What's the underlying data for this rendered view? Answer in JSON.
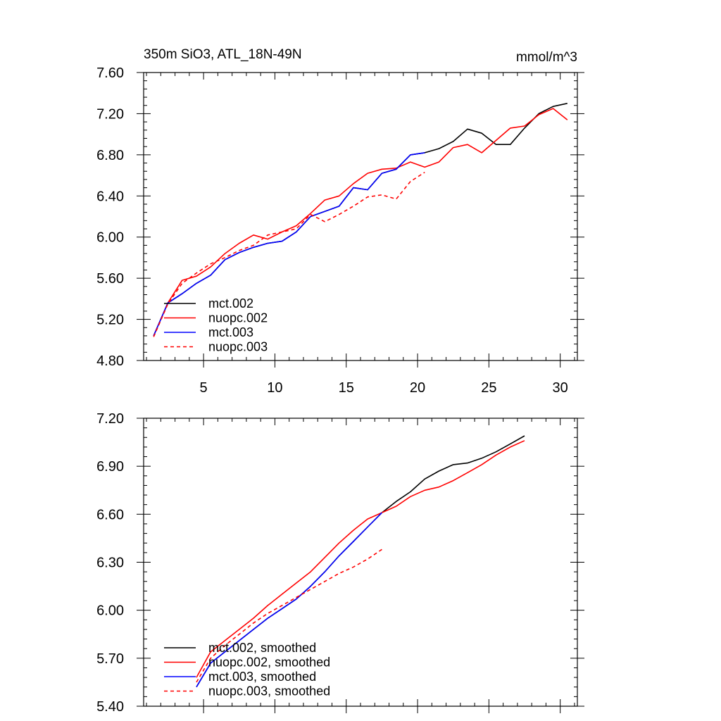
{
  "figure": {
    "title_left": "350m SiO3, ATL_18N-49N",
    "title_right": "mmol/m^3"
  },
  "colors": {
    "black": "#000000",
    "red": "#ff0000",
    "blue": "#0000ff",
    "background": "#ffffff"
  },
  "chart_data": [
    {
      "type": "line",
      "title": "350m SiO3, ATL_18N-49N",
      "units": "mmol/m^3",
      "xlabel": "",
      "ylabel": "",
      "xlim": [
        0.8,
        31.2
      ],
      "ylim": [
        4.8,
        7.6
      ],
      "x_ticks": [
        5,
        10,
        15,
        20,
        25,
        30
      ],
      "x_tick_labels": [
        "5",
        "10",
        "15",
        "20",
        "25",
        "30"
      ],
      "y_ticks": [
        4.8,
        5.2,
        5.6,
        6.0,
        6.4,
        6.8,
        7.2,
        7.6
      ],
      "y_tick_labels": [
        "4.80",
        "5.20",
        "5.60",
        "6.00",
        "6.40",
        "6.80",
        "7.20",
        "7.60"
      ],
      "legend_position": "bottom-left",
      "grid": false,
      "series": [
        {
          "name": "mct.002",
          "color": "#000000",
          "dash": "solid",
          "x": [
            1.5,
            2.5,
            3.5,
            4.5,
            5.5,
            6.5,
            7.5,
            8.5,
            9.5,
            10.5,
            11.5,
            12.5,
            13.5,
            14.5,
            15.5,
            16.5,
            17.5,
            18.5,
            19.5,
            20.5,
            21.5,
            22.5,
            23.5,
            24.5,
            25.5,
            26.5,
            27.5,
            28.5,
            29.5,
            30.5
          ],
          "values": [
            5.04,
            5.36,
            5.45,
            5.55,
            5.63,
            5.78,
            5.85,
            5.9,
            5.94,
            5.96,
            6.05,
            6.2,
            6.25,
            6.3,
            6.48,
            6.46,
            6.62,
            6.66,
            6.8,
            6.82,
            6.86,
            6.93,
            7.05,
            7.01,
            6.9,
            6.9,
            7.06,
            7.2,
            7.27,
            7.3
          ]
        },
        {
          "name": "nuopc.002",
          "color": "#ff0000",
          "dash": "solid",
          "x": [
            1.5,
            2.5,
            3.5,
            4.5,
            5.5,
            6.5,
            7.5,
            8.5,
            9.5,
            10.5,
            11.5,
            12.5,
            13.5,
            14.5,
            15.5,
            16.5,
            17.5,
            18.5,
            19.5,
            20.5,
            21.5,
            22.5,
            23.5,
            24.5,
            25.5,
            26.5,
            27.5,
            28.5,
            29.5,
            30.5
          ],
          "values": [
            5.04,
            5.36,
            5.58,
            5.62,
            5.71,
            5.84,
            5.94,
            6.02,
            5.98,
            6.05,
            6.11,
            6.23,
            6.36,
            6.4,
            6.52,
            6.62,
            6.66,
            6.67,
            6.73,
            6.68,
            6.73,
            6.87,
            6.9,
            6.82,
            6.94,
            7.06,
            7.08,
            7.19,
            7.25,
            7.14
          ]
        },
        {
          "name": "mct.003",
          "color": "#0000ff",
          "dash": "solid",
          "x": [
            1.5,
            2.5,
            3.5,
            4.5,
            5.5,
            6.5,
            7.5,
            8.5,
            9.5,
            10.5,
            11.5,
            12.5,
            13.5,
            14.5,
            15.5,
            16.5,
            17.5,
            18.5,
            19.5,
            20.5
          ],
          "values": [
            5.04,
            5.36,
            5.45,
            5.55,
            5.63,
            5.78,
            5.85,
            5.9,
            5.94,
            5.96,
            6.05,
            6.2,
            6.25,
            6.3,
            6.48,
            6.46,
            6.62,
            6.66,
            6.8,
            6.82
          ]
        },
        {
          "name": "nuopc.003",
          "color": "#ff0000",
          "dash": "dashed",
          "x": [
            1.5,
            2.5,
            3.5,
            4.5,
            5.5,
            6.5,
            7.5,
            8.5,
            9.5,
            10.5,
            11.5,
            12.5,
            13.5,
            14.5,
            15.5,
            16.5,
            17.5,
            18.5,
            19.5,
            20.5
          ],
          "values": [
            5.03,
            5.35,
            5.55,
            5.65,
            5.74,
            5.8,
            5.87,
            5.92,
            6.02,
            6.05,
            6.08,
            6.22,
            6.15,
            6.22,
            6.3,
            6.39,
            6.41,
            6.37,
            6.54,
            6.63
          ]
        }
      ]
    },
    {
      "type": "line",
      "title": "",
      "xlabel": "",
      "ylabel": "",
      "xlim": [
        0.8,
        31.2
      ],
      "ylim": [
        5.4,
        7.2
      ],
      "x_ticks": [
        5,
        10,
        15,
        20,
        25,
        30
      ],
      "x_tick_labels": [],
      "y_ticks": [
        5.4,
        5.7,
        6.0,
        6.3,
        6.6,
        6.9,
        7.2
      ],
      "y_tick_labels": [
        "5.40",
        "5.70",
        "6.00",
        "6.30",
        "6.60",
        "6.90",
        "7.20"
      ],
      "legend_position": "bottom-left",
      "grid": false,
      "series": [
        {
          "name": "mct.002, smoothed",
          "color": "#000000",
          "dash": "solid",
          "x": [
            4.5,
            5.5,
            6.5,
            7.5,
            8.5,
            9.5,
            10.5,
            11.5,
            12.5,
            13.5,
            14.5,
            15.5,
            16.5,
            17.5,
            18.5,
            19.5,
            20.5,
            21.5,
            22.5,
            23.5,
            24.5,
            25.5,
            26.5,
            27.5
          ],
          "values": [
            5.52,
            5.67,
            5.74,
            5.81,
            5.88,
            5.95,
            6.01,
            6.07,
            6.15,
            6.24,
            6.34,
            6.43,
            6.52,
            6.61,
            6.68,
            6.74,
            6.82,
            6.87,
            6.91,
            6.92,
            6.95,
            6.99,
            7.04,
            7.09
          ]
        },
        {
          "name": "nuopc.002, smoothed",
          "color": "#ff0000",
          "dash": "solid",
          "x": [
            4.5,
            5.5,
            6.5,
            7.5,
            8.5,
            9.5,
            10.5,
            11.5,
            12.5,
            13.5,
            14.5,
            15.5,
            16.5,
            17.5,
            18.5,
            19.5,
            20.5,
            21.5,
            22.5,
            23.5,
            24.5,
            25.5,
            26.5,
            27.5
          ],
          "values": [
            5.58,
            5.74,
            5.81,
            5.88,
            5.95,
            6.03,
            6.1,
            6.17,
            6.24,
            6.33,
            6.42,
            6.5,
            6.57,
            6.61,
            6.65,
            6.71,
            6.75,
            6.77,
            6.81,
            6.86,
            6.91,
            6.97,
            7.02,
            7.06
          ]
        },
        {
          "name": "mct.003, smoothed",
          "color": "#0000ff",
          "dash": "solid",
          "x": [
            4.5,
            5.5,
            6.5,
            7.5,
            8.5,
            9.5,
            10.5,
            11.5,
            12.5,
            13.5,
            14.5,
            15.5,
            16.5,
            17.5
          ],
          "values": [
            5.52,
            5.67,
            5.74,
            5.81,
            5.88,
            5.95,
            6.01,
            6.07,
            6.15,
            6.24,
            6.34,
            6.43,
            6.52,
            6.61
          ]
        },
        {
          "name": "nuopc.003, smoothed",
          "color": "#ff0000",
          "dash": "dashed",
          "x": [
            4.5,
            5.5,
            6.5,
            7.5,
            8.5,
            9.5,
            10.5,
            11.5,
            12.5,
            13.5,
            14.5,
            15.5,
            16.5,
            17.5
          ],
          "values": [
            5.55,
            5.7,
            5.78,
            5.85,
            5.92,
            5.98,
            6.03,
            6.08,
            6.13,
            6.18,
            6.23,
            6.27,
            6.32,
            6.38
          ]
        }
      ]
    }
  ]
}
